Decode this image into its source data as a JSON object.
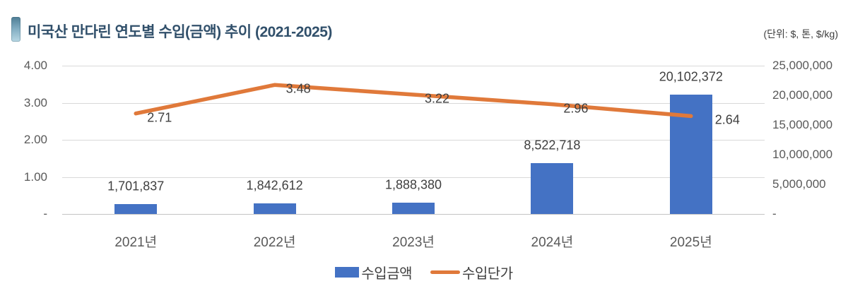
{
  "header": {
    "title": "미국산 만다린 연도별 수입(금액) 추이 (2021-2025)",
    "unit_label": "(단위: $, 톤, $/kg)"
  },
  "chart_data": {
    "type": "bar",
    "subtype": "bar-line-combo",
    "categories": [
      "2021년",
      "2022년",
      "2023년",
      "2024년",
      "2025년"
    ],
    "series": [
      {
        "name": "수입금액",
        "type": "bar",
        "axis": "right",
        "color": "#4472c4",
        "values": [
          1701837,
          1842612,
          1888380,
          8522718,
          20102372
        ],
        "labels": [
          "1,701,837",
          "1,842,612",
          "1,888,380",
          "8,522,718",
          "20,102,372"
        ]
      },
      {
        "name": "수입단가",
        "type": "line",
        "axis": "left",
        "color": "#e0793a",
        "values": [
          2.71,
          3.48,
          3.22,
          2.96,
          2.64
        ],
        "labels": [
          "2.71",
          "3.48",
          "3.22",
          "2.96",
          "2.64"
        ]
      }
    ],
    "left_axis": {
      "min": 0,
      "max": 4,
      "ticks_top_to_bottom": [
        "4.00",
        "3.00",
        "2.00",
        "1.00",
        "-"
      ]
    },
    "right_axis": {
      "min": 0,
      "max": 25000000,
      "ticks_top_to_bottom": [
        "25,000,000",
        "20,000,000",
        "15,000,000",
        "10,000,000",
        "5,000,000",
        "-"
      ]
    },
    "grid": true,
    "legend_position": "bottom"
  },
  "colors": {
    "bar": "#4472c4",
    "line": "#e0793a",
    "gridline": "#d9d9d9",
    "title": "#31506b",
    "tick_text": "#595959",
    "data_label_text": "#3f3f3f"
  }
}
